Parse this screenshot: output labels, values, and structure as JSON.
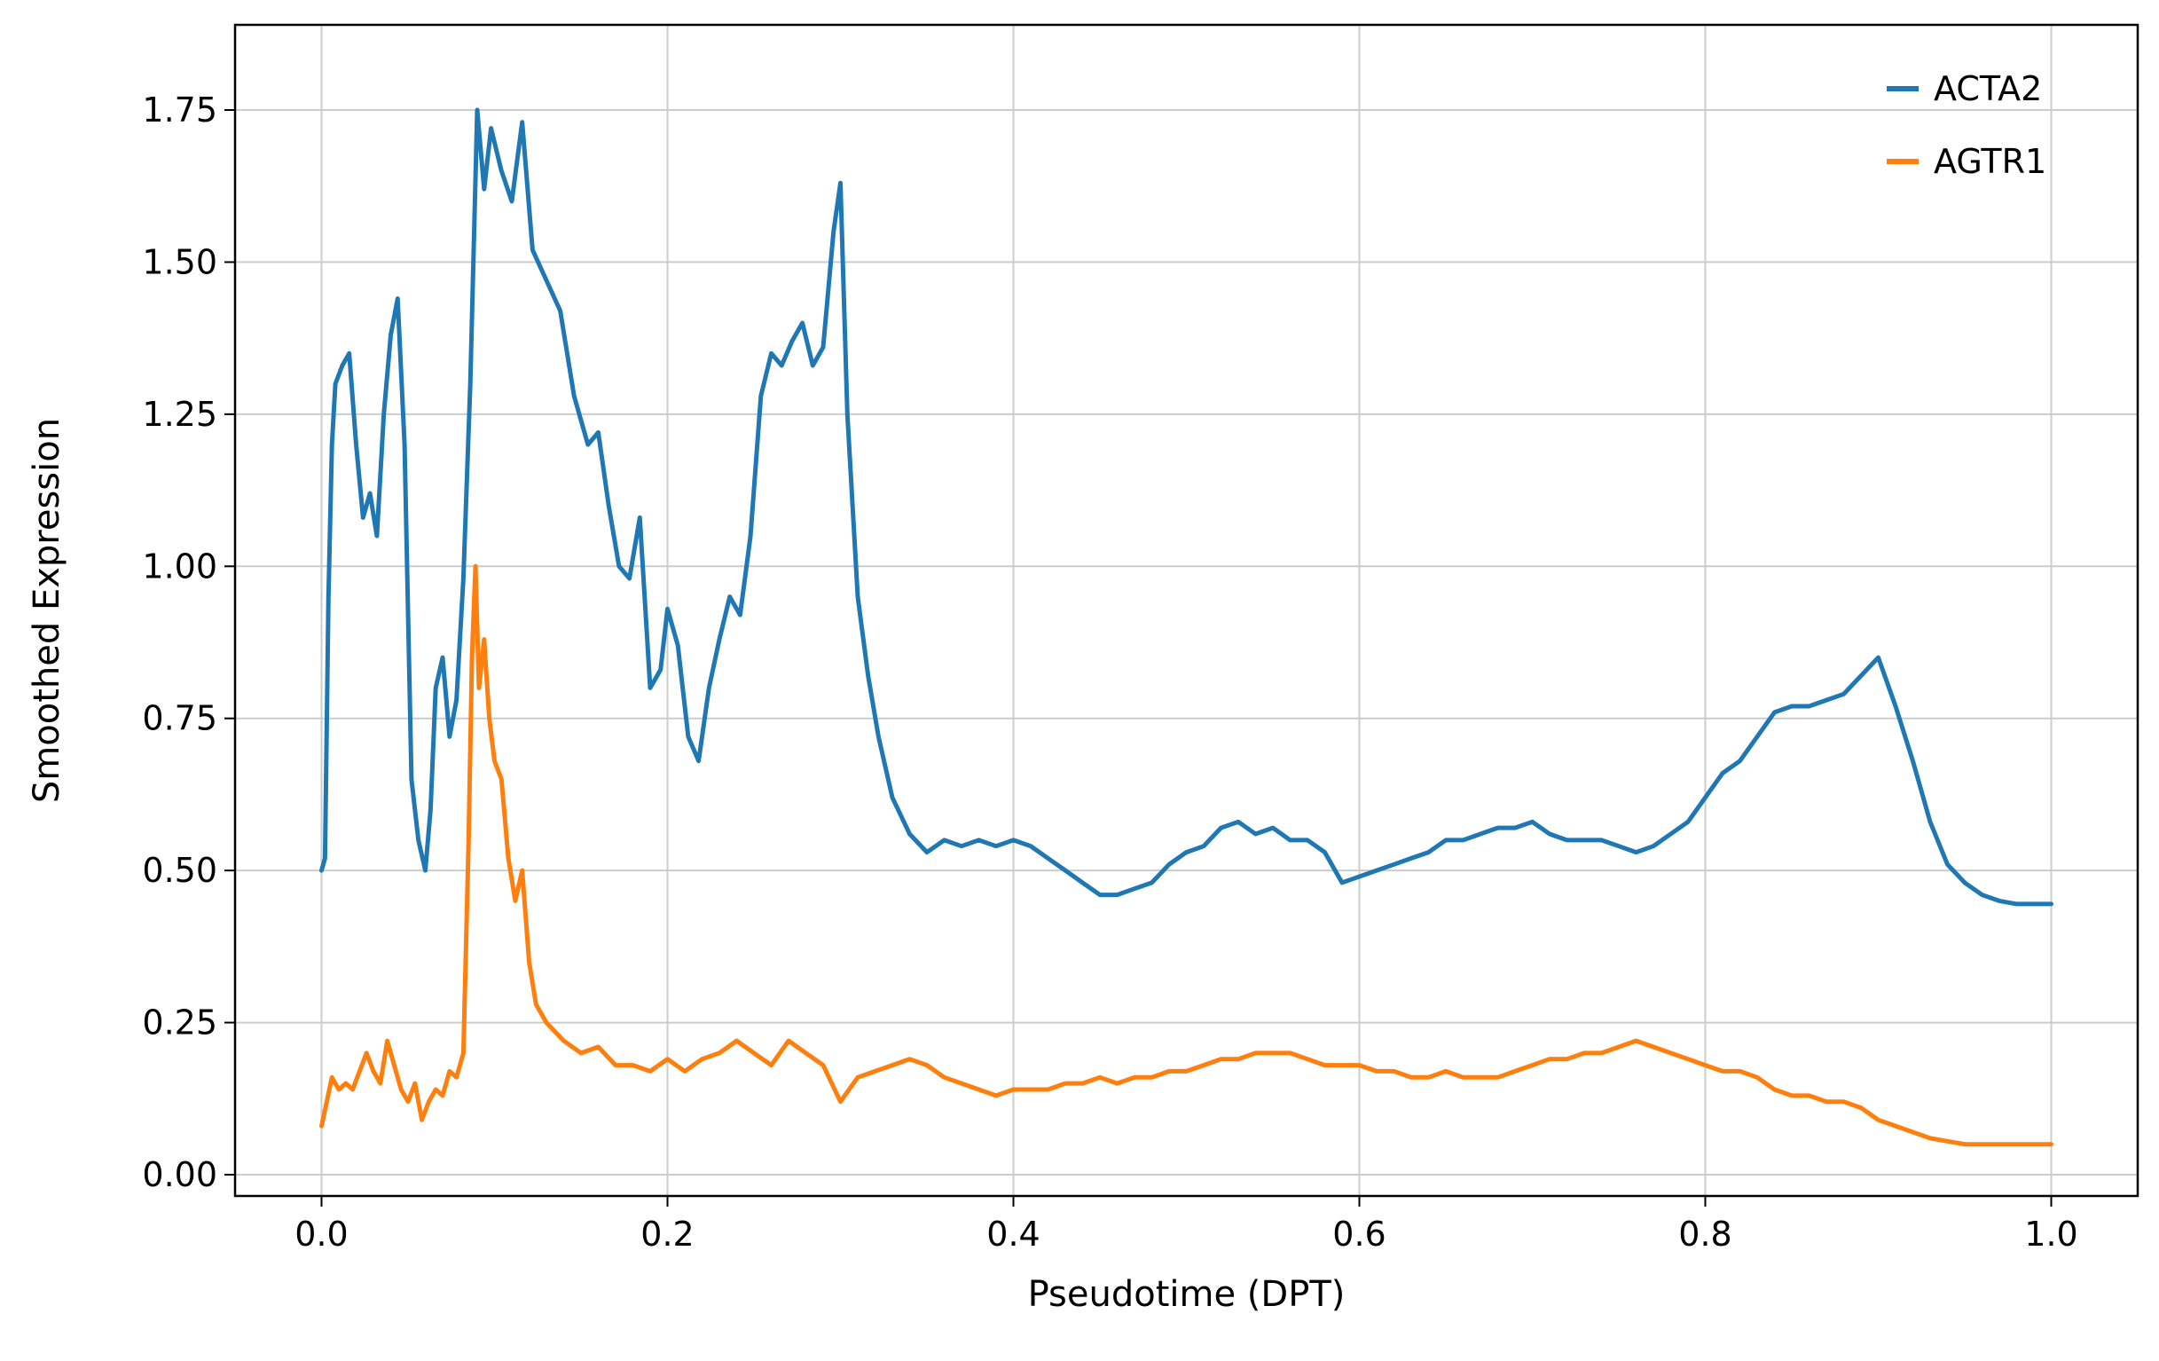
{
  "chart_data": {
    "type": "line",
    "title": "",
    "xlabel": "Pseudotime (DPT)",
    "ylabel": "Smoothed Expression",
    "xlim": [
      -0.05,
      1.05
    ],
    "ylim": [
      -0.035,
      1.89
    ],
    "xticks": [
      0.0,
      0.2,
      0.4,
      0.6,
      0.8,
      1.0
    ],
    "xtick_labels": [
      "0.0",
      "0.2",
      "0.4",
      "0.6",
      "0.8",
      "1.0"
    ],
    "yticks": [
      0.0,
      0.25,
      0.5,
      0.75,
      1.0,
      1.25,
      1.5,
      1.75
    ],
    "ytick_labels": [
      "0.00",
      "0.25",
      "0.50",
      "0.75",
      "1.00",
      "1.25",
      "1.50",
      "1.75"
    ],
    "grid": true,
    "legend_position": "top-right",
    "series": [
      {
        "name": "ACTA2",
        "color": "#1f77b4",
        "x": [
          0.0,
          0.002,
          0.004,
          0.006,
          0.008,
          0.012,
          0.016,
          0.02,
          0.024,
          0.028,
          0.032,
          0.036,
          0.04,
          0.044,
          0.048,
          0.052,
          0.056,
          0.06,
          0.063,
          0.066,
          0.07,
          0.074,
          0.078,
          0.082,
          0.086,
          0.09,
          0.094,
          0.098,
          0.104,
          0.11,
          0.116,
          0.122,
          0.13,
          0.138,
          0.146,
          0.154,
          0.16,
          0.166,
          0.172,
          0.178,
          0.184,
          0.19,
          0.196,
          0.2,
          0.206,
          0.212,
          0.218,
          0.224,
          0.23,
          0.236,
          0.242,
          0.248,
          0.254,
          0.26,
          0.266,
          0.272,
          0.278,
          0.284,
          0.29,
          0.296,
          0.3,
          0.304,
          0.31,
          0.316,
          0.322,
          0.33,
          0.34,
          0.35,
          0.36,
          0.37,
          0.38,
          0.39,
          0.4,
          0.41,
          0.42,
          0.43,
          0.44,
          0.45,
          0.46,
          0.47,
          0.48,
          0.49,
          0.5,
          0.51,
          0.52,
          0.53,
          0.54,
          0.55,
          0.56,
          0.57,
          0.58,
          0.59,
          0.6,
          0.61,
          0.62,
          0.63,
          0.64,
          0.65,
          0.66,
          0.67,
          0.68,
          0.69,
          0.7,
          0.71,
          0.72,
          0.73,
          0.74,
          0.75,
          0.76,
          0.77,
          0.78,
          0.79,
          0.8,
          0.81,
          0.82,
          0.83,
          0.84,
          0.85,
          0.86,
          0.87,
          0.88,
          0.89,
          0.9,
          0.91,
          0.92,
          0.93,
          0.94,
          0.95,
          0.96,
          0.97,
          0.98,
          0.99,
          1.0
        ],
        "values": [
          0.5,
          0.52,
          0.95,
          1.2,
          1.3,
          1.33,
          1.35,
          1.2,
          1.08,
          1.12,
          1.05,
          1.25,
          1.38,
          1.44,
          1.2,
          0.65,
          0.55,
          0.5,
          0.6,
          0.8,
          0.85,
          0.72,
          0.78,
          0.98,
          1.3,
          1.75,
          1.62,
          1.72,
          1.65,
          1.6,
          1.73,
          1.52,
          1.47,
          1.42,
          1.28,
          1.2,
          1.22,
          1.1,
          1.0,
          0.98,
          1.08,
          0.8,
          0.83,
          0.93,
          0.87,
          0.72,
          0.68,
          0.8,
          0.88,
          0.95,
          0.92,
          1.05,
          1.28,
          1.35,
          1.33,
          1.37,
          1.4,
          1.33,
          1.36,
          1.55,
          1.63,
          1.25,
          0.95,
          0.82,
          0.72,
          0.62,
          0.56,
          0.53,
          0.55,
          0.54,
          0.55,
          0.54,
          0.55,
          0.54,
          0.52,
          0.5,
          0.48,
          0.46,
          0.46,
          0.47,
          0.48,
          0.51,
          0.53,
          0.54,
          0.57,
          0.58,
          0.56,
          0.57,
          0.55,
          0.55,
          0.53,
          0.48,
          0.49,
          0.5,
          0.51,
          0.52,
          0.53,
          0.55,
          0.55,
          0.56,
          0.57,
          0.57,
          0.58,
          0.56,
          0.55,
          0.55,
          0.55,
          0.54,
          0.53,
          0.54,
          0.56,
          0.58,
          0.62,
          0.66,
          0.68,
          0.72,
          0.76,
          0.77,
          0.77,
          0.78,
          0.79,
          0.82,
          0.85,
          0.77,
          0.68,
          0.58,
          0.51,
          0.48,
          0.46,
          0.45,
          0.445,
          0.445,
          0.445
        ]
      },
      {
        "name": "AGTR1",
        "color": "#ff7f0e",
        "x": [
          0.0,
          0.003,
          0.006,
          0.01,
          0.014,
          0.018,
          0.022,
          0.026,
          0.03,
          0.034,
          0.038,
          0.042,
          0.046,
          0.05,
          0.054,
          0.058,
          0.062,
          0.066,
          0.07,
          0.074,
          0.078,
          0.082,
          0.085,
          0.087,
          0.089,
          0.091,
          0.094,
          0.097,
          0.1,
          0.104,
          0.108,
          0.112,
          0.116,
          0.12,
          0.124,
          0.13,
          0.14,
          0.15,
          0.16,
          0.17,
          0.18,
          0.19,
          0.2,
          0.21,
          0.22,
          0.23,
          0.24,
          0.25,
          0.26,
          0.27,
          0.28,
          0.29,
          0.3,
          0.31,
          0.32,
          0.33,
          0.34,
          0.35,
          0.36,
          0.37,
          0.38,
          0.39,
          0.4,
          0.41,
          0.42,
          0.43,
          0.44,
          0.45,
          0.46,
          0.47,
          0.48,
          0.49,
          0.5,
          0.51,
          0.52,
          0.53,
          0.54,
          0.55,
          0.56,
          0.57,
          0.58,
          0.59,
          0.6,
          0.61,
          0.62,
          0.63,
          0.64,
          0.65,
          0.66,
          0.67,
          0.68,
          0.69,
          0.7,
          0.71,
          0.72,
          0.73,
          0.74,
          0.75,
          0.76,
          0.77,
          0.78,
          0.79,
          0.8,
          0.81,
          0.82,
          0.83,
          0.84,
          0.85,
          0.86,
          0.87,
          0.88,
          0.89,
          0.9,
          0.91,
          0.92,
          0.93,
          0.94,
          0.95,
          0.96,
          0.97,
          0.98,
          0.99,
          1.0
        ],
        "values": [
          0.08,
          0.12,
          0.16,
          0.14,
          0.15,
          0.14,
          0.17,
          0.2,
          0.17,
          0.15,
          0.22,
          0.18,
          0.14,
          0.12,
          0.15,
          0.09,
          0.12,
          0.14,
          0.13,
          0.17,
          0.16,
          0.2,
          0.55,
          0.85,
          1.0,
          0.8,
          0.88,
          0.75,
          0.68,
          0.65,
          0.52,
          0.45,
          0.5,
          0.35,
          0.28,
          0.25,
          0.22,
          0.2,
          0.21,
          0.18,
          0.18,
          0.17,
          0.19,
          0.17,
          0.19,
          0.2,
          0.22,
          0.2,
          0.18,
          0.22,
          0.2,
          0.18,
          0.12,
          0.16,
          0.17,
          0.18,
          0.19,
          0.18,
          0.16,
          0.15,
          0.14,
          0.13,
          0.14,
          0.14,
          0.14,
          0.15,
          0.15,
          0.16,
          0.15,
          0.16,
          0.16,
          0.17,
          0.17,
          0.18,
          0.19,
          0.19,
          0.2,
          0.2,
          0.2,
          0.19,
          0.18,
          0.18,
          0.18,
          0.17,
          0.17,
          0.16,
          0.16,
          0.17,
          0.16,
          0.16,
          0.16,
          0.17,
          0.18,
          0.19,
          0.19,
          0.2,
          0.2,
          0.21,
          0.22,
          0.21,
          0.2,
          0.19,
          0.18,
          0.17,
          0.17,
          0.16,
          0.14,
          0.13,
          0.13,
          0.12,
          0.12,
          0.11,
          0.09,
          0.08,
          0.07,
          0.06,
          0.055,
          0.05,
          0.05,
          0.05,
          0.05,
          0.05,
          0.05
        ]
      }
    ]
  }
}
